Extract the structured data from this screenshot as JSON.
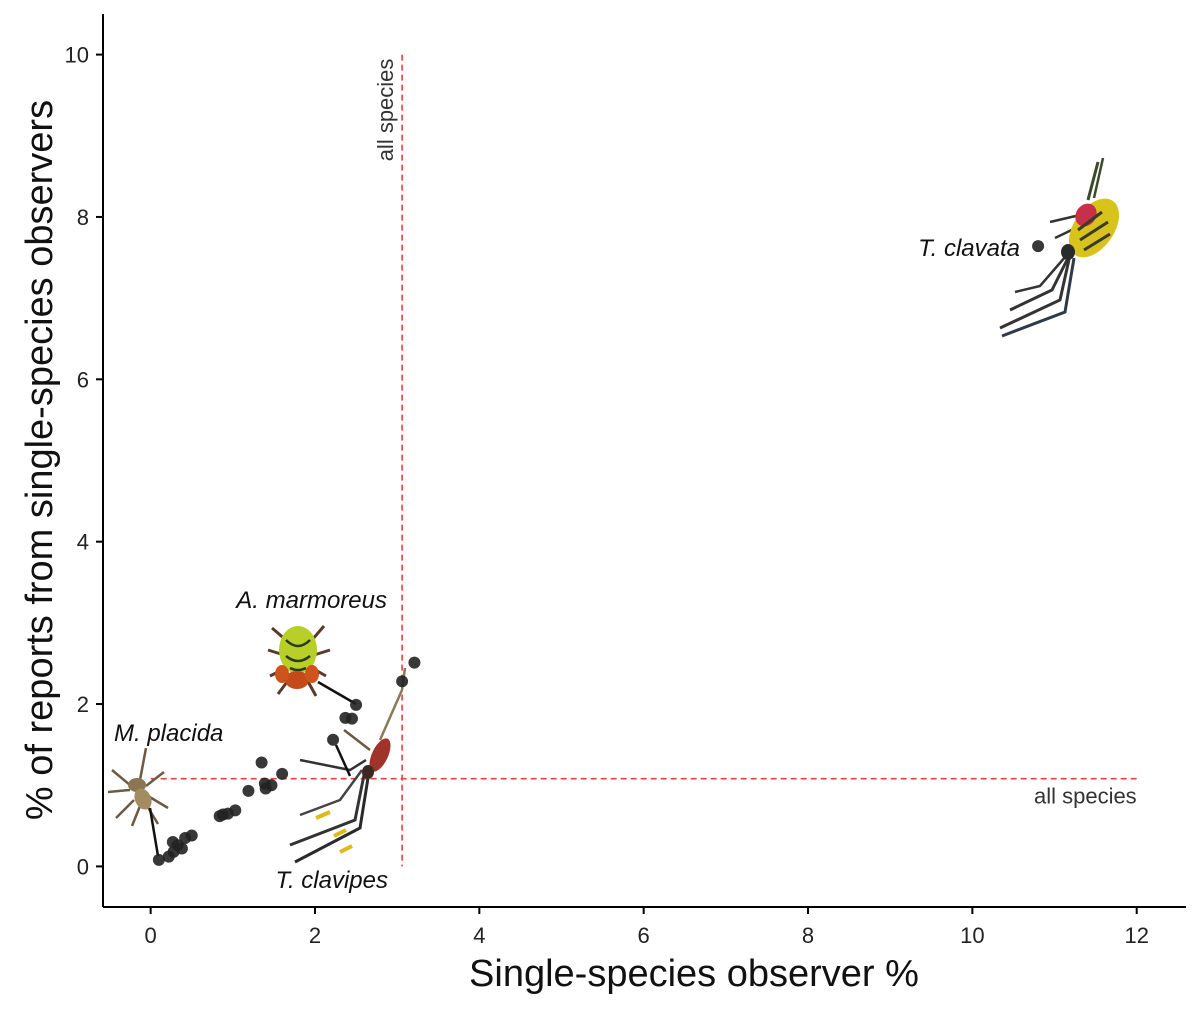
{
  "chart_data": {
    "type": "scatter",
    "title": "",
    "xlabel": "Single-species observer %",
    "ylabel": "% of reports from single-species observers",
    "xlim": [
      -0.58,
      12.6
    ],
    "ylim": [
      -0.5,
      10.5
    ],
    "xticks": [
      0,
      2,
      4,
      6,
      8,
      10,
      12
    ],
    "yticks": [
      0,
      2,
      4,
      6,
      8,
      10
    ],
    "grid": false,
    "point_color": "#222222",
    "points": [
      {
        "x": 0.1,
        "y": 0.08
      },
      {
        "x": 0.22,
        "y": 0.12
      },
      {
        "x": 0.28,
        "y": 0.18
      },
      {
        "x": 0.33,
        "y": 0.26
      },
      {
        "x": 0.27,
        "y": 0.3
      },
      {
        "x": 0.38,
        "y": 0.22
      },
      {
        "x": 0.42,
        "y": 0.35
      },
      {
        "x": 0.5,
        "y": 0.38
      },
      {
        "x": 0.84,
        "y": 0.62
      },
      {
        "x": 0.88,
        "y": 0.64
      },
      {
        "x": 0.94,
        "y": 0.65
      },
      {
        "x": 1.03,
        "y": 0.69
      },
      {
        "x": 1.19,
        "y": 0.93
      },
      {
        "x": 1.35,
        "y": 1.28
      },
      {
        "x": 1.4,
        "y": 0.96
      },
      {
        "x": 1.39,
        "y": 1.02
      },
      {
        "x": 1.47,
        "y": 1.0
      },
      {
        "x": 1.6,
        "y": 1.14
      },
      {
        "x": 2.22,
        "y": 1.56
      },
      {
        "x": 2.37,
        "y": 1.83
      },
      {
        "x": 2.45,
        "y": 1.82
      },
      {
        "x": 2.5,
        "y": 1.99
      },
      {
        "x": 3.06,
        "y": 2.28
      },
      {
        "x": 3.21,
        "y": 2.51
      },
      {
        "x": 10.8,
        "y": 7.64
      }
    ],
    "reference_lines": [
      {
        "orientation": "vertical",
        "value": 3.06,
        "label": "all species",
        "color": "#e8413c"
      },
      {
        "orientation": "horizontal",
        "value": 1.08,
        "label": "all species",
        "color": "#e8413c"
      }
    ],
    "annotations": [
      {
        "label": "T. clavata",
        "x": 10.8,
        "y": 7.64
      },
      {
        "label": "A. marmoreus",
        "x": 2.5,
        "y": 1.99
      },
      {
        "label": "M. placida",
        "x": 0.1,
        "y": 0.08
      },
      {
        "label": "T. clavipes",
        "x": 2.42,
        "y": 1.0
      }
    ]
  }
}
